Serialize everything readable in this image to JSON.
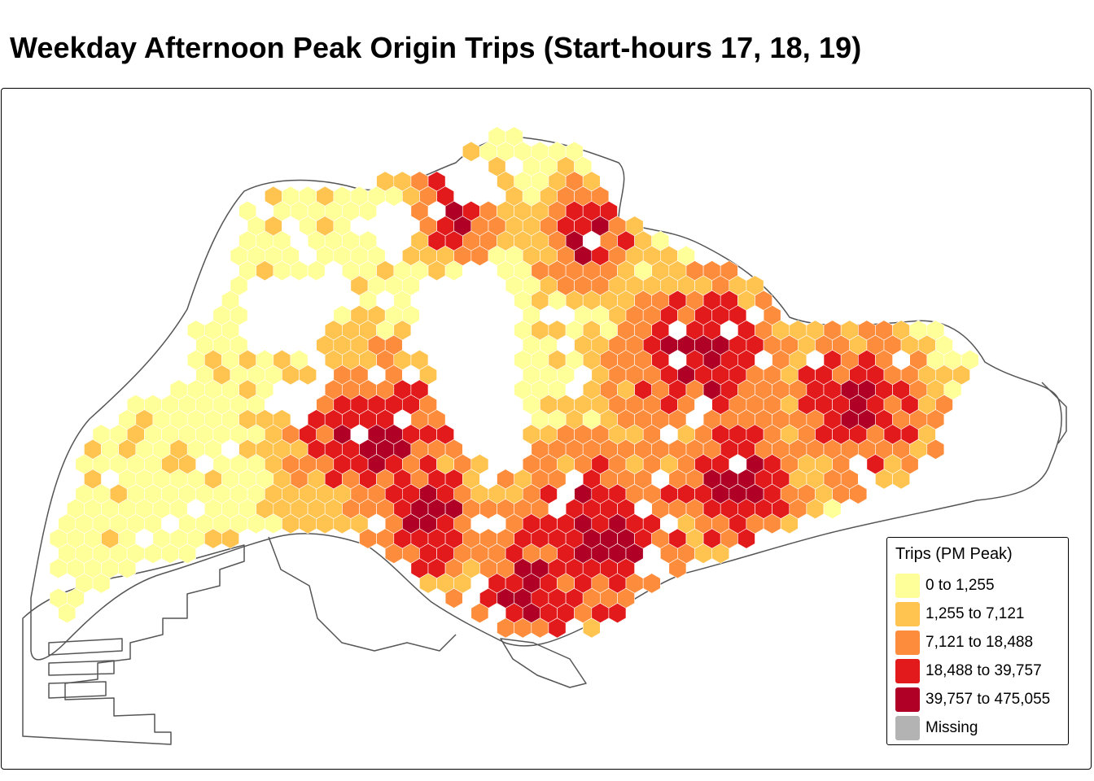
{
  "title": "Weekday Afternoon Peak Origin Trips (Start-hours 17, 18, 19)",
  "legend": {
    "title": "Trips (PM Peak)",
    "items": [
      {
        "label": "0 to 1,255",
        "color": "#ffff99"
      },
      {
        "label": "1,255 to 7,121",
        "color": "#fec44f"
      },
      {
        "label": "7,121 to 18,488",
        "color": "#fd8d3c"
      },
      {
        "label": "18,488 to 39,757",
        "color": "#e31a1c"
      },
      {
        "label": "39,757 to 475,055",
        "color": "#b10026"
      },
      {
        "label": "Missing",
        "color": "#b3b3b3"
      }
    ]
  },
  "colors": {
    "outline": "#555555",
    "hex_border": "#ffffff"
  }
}
